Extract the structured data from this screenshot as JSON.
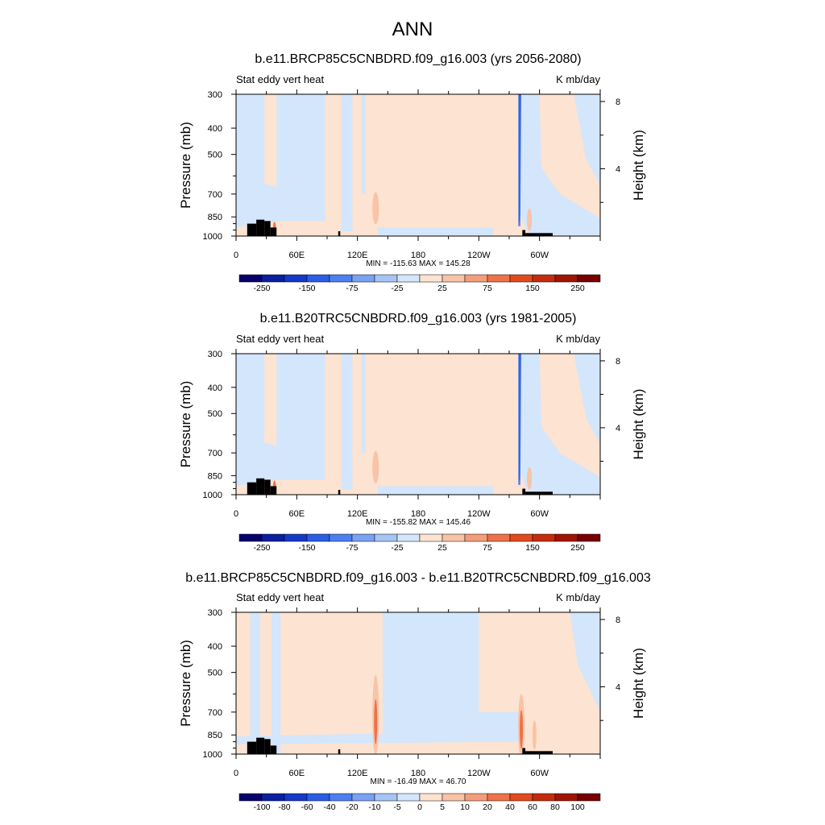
{
  "figure_title": "ANN",
  "colors": {
    "axis": "#000000",
    "land": "#000000",
    "palette": [
      "#08006b",
      "#0b1fa0",
      "#1539c7",
      "#2b5de4",
      "#4e7fef",
      "#7aa1f2",
      "#a6c4f4",
      "#d3e6fb",
      "#fde3d1",
      "#f8c3a6",
      "#f49d7a",
      "#ee7249",
      "#e14a1f",
      "#c42c0e",
      "#a01404",
      "#780000"
    ]
  },
  "chart_data": [
    {
      "type": "heatmap",
      "title": "b.e11.BRCP85C5CNBDRD.f09_g16.003 (yrs 2056-2080)",
      "left_label": "Stat eddy vert heat",
      "right_label": "K mb/day",
      "ylabel": "Pressure (mb)",
      "ylabel_right": "Height (km)",
      "x_ticks": [
        "0",
        "60E",
        "120E",
        "180",
        "120W",
        "60W"
      ],
      "y_ticks": [
        "300",
        "400",
        "500",
        "700",
        "850",
        "1000"
      ],
      "y_ticks_right": [
        "8",
        "4"
      ],
      "min_max_text": "MIN = -115.63  MAX = 145.28",
      "colorbar_labels": [
        "-250",
        "-150",
        "-75",
        "-25",
        "25",
        "75",
        "150",
        "250"
      ],
      "values_range": [
        -115.63,
        145.28
      ]
    },
    {
      "type": "heatmap",
      "title": "b.e11.B20TRC5CNBDRD.f09_g16.003 (yrs 1981-2005)",
      "left_label": "Stat eddy vert heat",
      "right_label": "K mb/day",
      "ylabel": "Pressure (mb)",
      "ylabel_right": "Height (km)",
      "x_ticks": [
        "0",
        "60E",
        "120E",
        "180",
        "120W",
        "60W"
      ],
      "y_ticks": [
        "300",
        "400",
        "500",
        "700",
        "850",
        "1000"
      ],
      "y_ticks_right": [
        "8",
        "4"
      ],
      "min_max_text": "MIN = -155.82  MAX = 145.46",
      "colorbar_labels": [
        "-250",
        "-150",
        "-75",
        "-25",
        "25",
        "75",
        "150",
        "250"
      ],
      "values_range": [
        -155.82,
        145.46
      ]
    },
    {
      "type": "heatmap",
      "title": "b.e11.BRCP85C5CNBDRD.f09_g16.003 - b.e11.B20TRC5CNBDRD.f09_g16.003",
      "left_label": "Stat eddy vert heat",
      "right_label": "K mb/day",
      "ylabel": "Pressure (mb)",
      "ylabel_right": "Height (km)",
      "x_ticks": [
        "0",
        "60E",
        "120E",
        "180",
        "120W",
        "60W"
      ],
      "y_ticks": [
        "300",
        "400",
        "500",
        "700",
        "850",
        "1000"
      ],
      "y_ticks_right": [
        "8",
        "4"
      ],
      "min_max_text": "MIN = -16.49  MAX = 46.70",
      "colorbar_labels": [
        "-100",
        "-80",
        "-60",
        "-40",
        "-20",
        "-10",
        "-5",
        "0",
        "5",
        "10",
        "20",
        "40",
        "60",
        "80",
        "100"
      ],
      "values_range": [
        -16.49,
        46.7
      ]
    }
  ]
}
